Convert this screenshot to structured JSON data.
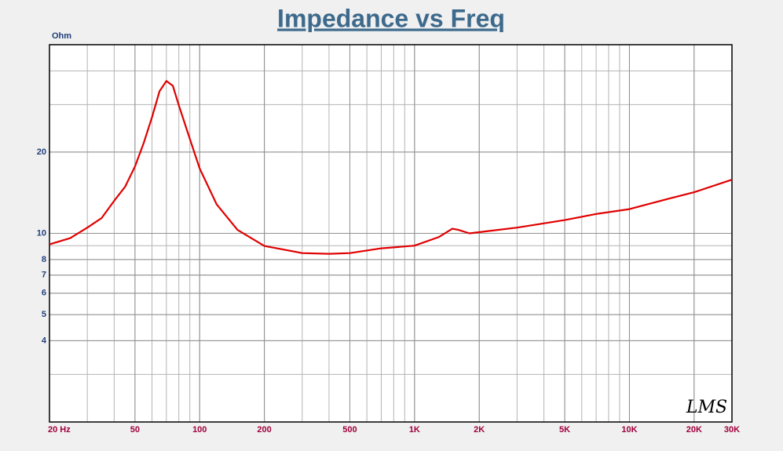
{
  "chart_data": {
    "type": "line",
    "title": "Impedance vs Freq",
    "y_label": "Ohm",
    "annotation": "LMS",
    "log_x": true,
    "log_y": true,
    "grid": true,
    "color": "#e00000",
    "xlim": [
      20,
      30000
    ],
    "ylim": [
      2,
      50
    ],
    "xticks": [
      {
        "value": 20,
        "label": "20  Hz"
      },
      50,
      100,
      200,
      500,
      {
        "value": 1000,
        "label": "1K"
      },
      {
        "value": 2000,
        "label": "2K"
      },
      {
        "value": 5000,
        "label": "5K"
      },
      {
        "value": 10000,
        "label": "10K"
      },
      {
        "value": 20000,
        "label": "20K"
      },
      {
        "value": 30000,
        "label": "30K"
      }
    ],
    "yticks": [
      4,
      5,
      6,
      7,
      8,
      10,
      20
    ],
    "x": [
      20,
      25,
      30,
      35,
      40,
      45,
      50,
      55,
      60,
      65,
      70,
      75,
      80,
      90,
      100,
      120,
      150,
      200,
      300,
      400,
      500,
      700,
      1000,
      1300,
      1500,
      1600,
      1800,
      2000,
      3000,
      5000,
      7000,
      10000,
      15000,
      20000,
      30000
    ],
    "values": [
      9.1,
      9.6,
      10.5,
      11.4,
      13.2,
      14.9,
      17.7,
      21.7,
      26.9,
      33.6,
      36.7,
      35.2,
      29.8,
      22.4,
      17.4,
      12.8,
      10.3,
      8.98,
      8.45,
      8.4,
      8.45,
      8.8,
      9.0,
      9.7,
      10.4,
      10.3,
      10.0,
      10.1,
      10.5,
      11.2,
      11.8,
      12.3,
      13.4,
      14.2,
      15.8
    ]
  }
}
